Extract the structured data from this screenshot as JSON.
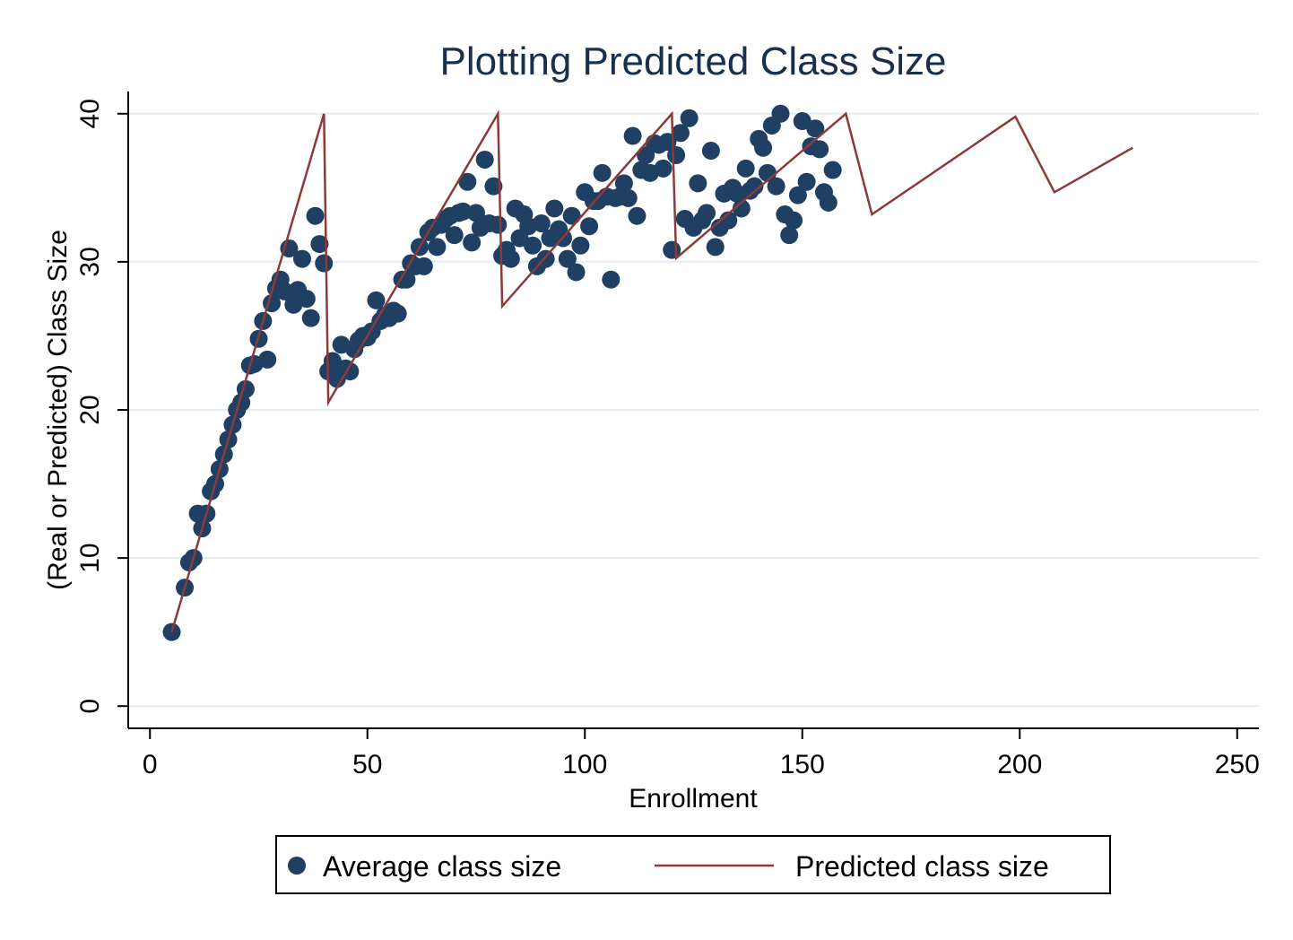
{
  "chart_data": {
    "type": "scatter",
    "title": "Plotting Predicted Class Size",
    "xlabel": "Enrollment",
    "ylabel": "(Real or Predicted) Class Size",
    "xlim": [
      -5,
      255
    ],
    "ylim": [
      -1.5,
      41.5
    ],
    "x_ticks": [
      "0",
      "50",
      "100",
      "150",
      "200",
      "250"
    ],
    "y_ticks": [
      "0",
      "10",
      "20",
      "30",
      "40"
    ],
    "x_tick_values": [
      0,
      50,
      100,
      150,
      200,
      250
    ],
    "y_tick_values": [
      0,
      10,
      20,
      30,
      40
    ],
    "grid": "horizontal",
    "legend_position": "bottom",
    "colors": {
      "points": "#1f3f63",
      "line": "#8b3a3a",
      "grid": "#e4ecef",
      "title": "#1a2f4c"
    },
    "series": [
      {
        "name": "Average class size",
        "kind": "scatter",
        "points": [
          [
            5,
            5
          ],
          [
            8,
            8
          ],
          [
            9,
            9.7
          ],
          [
            10,
            10
          ],
          [
            11,
            13
          ],
          [
            12,
            12
          ],
          [
            13,
            13
          ],
          [
            14,
            14.5
          ],
          [
            15,
            15
          ],
          [
            16,
            16
          ],
          [
            17,
            17
          ],
          [
            18,
            18
          ],
          [
            19,
            19
          ],
          [
            20,
            20
          ],
          [
            21,
            20.5
          ],
          [
            22,
            21.4
          ],
          [
            23,
            23
          ],
          [
            24,
            23.1
          ],
          [
            25,
            24.8
          ],
          [
            26,
            26
          ],
          [
            27,
            23.4
          ],
          [
            28,
            27.2
          ],
          [
            29,
            28.2
          ],
          [
            30,
            28.8
          ],
          [
            31,
            28
          ],
          [
            32,
            30.9
          ],
          [
            33,
            27.1
          ],
          [
            34,
            28.1
          ],
          [
            35,
            30.2
          ],
          [
            36,
            27.5
          ],
          [
            37,
            26.2
          ],
          [
            38,
            33.1
          ],
          [
            39,
            31.2
          ],
          [
            40,
            29.9
          ],
          [
            41,
            22.6
          ],
          [
            42,
            23.3
          ],
          [
            43,
            22.1
          ],
          [
            44,
            24.4
          ],
          [
            45,
            22.8
          ],
          [
            46,
            22.6
          ],
          [
            47,
            24.1
          ],
          [
            48,
            24.7
          ],
          [
            49,
            25
          ],
          [
            50,
            24.9
          ],
          [
            51,
            25.3
          ],
          [
            52,
            27.4
          ],
          [
            53,
            26
          ],
          [
            54,
            26.4
          ],
          [
            55,
            26.2
          ],
          [
            56,
            26.7
          ],
          [
            57,
            26.5
          ],
          [
            58,
            28.8
          ],
          [
            59,
            28.8
          ],
          [
            60,
            29.9
          ],
          [
            61,
            29.7
          ],
          [
            62,
            31
          ],
          [
            63,
            29.7
          ],
          [
            64,
            32
          ],
          [
            65,
            32.3
          ],
          [
            66,
            31
          ],
          [
            67,
            32.5
          ],
          [
            68,
            32.9
          ],
          [
            69,
            33.1
          ],
          [
            70,
            31.8
          ],
          [
            71,
            33.3
          ],
          [
            72,
            33.4
          ],
          [
            73,
            35.4
          ],
          [
            74,
            31.3
          ],
          [
            75,
            33.3
          ],
          [
            76,
            32.3
          ],
          [
            77,
            36.9
          ],
          [
            78,
            32.6
          ],
          [
            79,
            35.1
          ],
          [
            80,
            32.5
          ],
          [
            81,
            30.4
          ],
          [
            82,
            30.8
          ],
          [
            83,
            30.2
          ],
          [
            84,
            33.6
          ],
          [
            85,
            31.6
          ],
          [
            86,
            33.2
          ],
          [
            87,
            32.4
          ],
          [
            88,
            31.1
          ],
          [
            89,
            29.7
          ],
          [
            90,
            32.6
          ],
          [
            91,
            30.2
          ],
          [
            92,
            31.6
          ],
          [
            93,
            33.6
          ],
          [
            94,
            32.2
          ],
          [
            95,
            31.6
          ],
          [
            96,
            30.2
          ],
          [
            97,
            33.1
          ],
          [
            98,
            29.3
          ],
          [
            99,
            31.1
          ],
          [
            100,
            34.7
          ],
          [
            101,
            32.4
          ],
          [
            102,
            34.1
          ],
          [
            103,
            34.1
          ],
          [
            104,
            36
          ],
          [
            105,
            34.4
          ],
          [
            106,
            28.8
          ],
          [
            107,
            34.3
          ],
          [
            108,
            34.4
          ],
          [
            109,
            35.3
          ],
          [
            110,
            34.3
          ],
          [
            111,
            38.5
          ],
          [
            112,
            33.1
          ],
          [
            113,
            36.2
          ],
          [
            114,
            37.2
          ],
          [
            115,
            36
          ],
          [
            116,
            38
          ],
          [
            117,
            37.9
          ],
          [
            118,
            36.3
          ],
          [
            119,
            38.1
          ],
          [
            120,
            30.8
          ],
          [
            121,
            37.2
          ],
          [
            122,
            38.7
          ],
          [
            123,
            32.9
          ],
          [
            124,
            39.7
          ],
          [
            125,
            32.3
          ],
          [
            126,
            35.3
          ],
          [
            127,
            32.8
          ],
          [
            128,
            33.3
          ],
          [
            129,
            37.5
          ],
          [
            130,
            31
          ],
          [
            131,
            32.3
          ],
          [
            132,
            34.6
          ],
          [
            133,
            32.8
          ],
          [
            134,
            35
          ],
          [
            135,
            34.6
          ],
          [
            136,
            33.6
          ],
          [
            137,
            36.3
          ],
          [
            138,
            34.8
          ],
          [
            139,
            35.1
          ],
          [
            140,
            38.3
          ],
          [
            141,
            37.7
          ],
          [
            142,
            36
          ],
          [
            143,
            39.2
          ],
          [
            144,
            35.1
          ],
          [
            145,
            40
          ],
          [
            146,
            33.2
          ],
          [
            147,
            31.8
          ],
          [
            148,
            32.8
          ],
          [
            149,
            34.5
          ],
          [
            150,
            39.5
          ],
          [
            151,
            35.4
          ],
          [
            152,
            37.8
          ],
          [
            153,
            39
          ],
          [
            154,
            37.6
          ],
          [
            155,
            34.7
          ],
          [
            156,
            34
          ],
          [
            157,
            36.2
          ]
        ]
      },
      {
        "name": "Predicted class size",
        "kind": "line",
        "points": [
          [
            5,
            5
          ],
          [
            40,
            40
          ],
          [
            41,
            20.5
          ],
          [
            80,
            40
          ],
          [
            81,
            27
          ],
          [
            120,
            40
          ],
          [
            121,
            30.25
          ],
          [
            160,
            40
          ],
          [
            166,
            33.2
          ],
          [
            199,
            39.8
          ],
          [
            208,
            34.7
          ],
          [
            226,
            37.7
          ]
        ]
      }
    ]
  },
  "legend": {
    "scatter_label": "Average class size",
    "line_label": "Predicted class size"
  }
}
